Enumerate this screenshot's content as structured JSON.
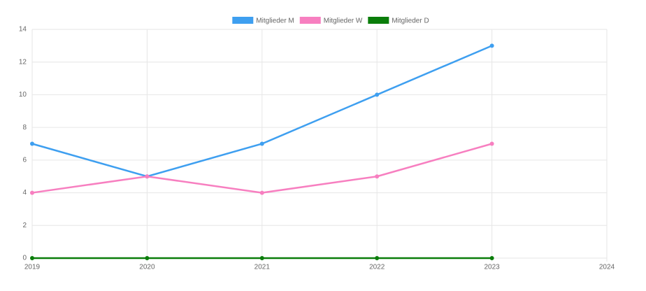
{
  "chart_data": {
    "type": "line",
    "x": [
      2019,
      2020,
      2021,
      2022,
      2023
    ],
    "series": [
      {
        "name": "Mitglieder M",
        "color": "#3e9ff0",
        "values": [
          7,
          5,
          7,
          10,
          13
        ]
      },
      {
        "name": "Mitglieder W",
        "color": "#f77fc0",
        "values": [
          4,
          5,
          4,
          5,
          7
        ]
      },
      {
        "name": "Mitglieder D",
        "color": "#0a7d0a",
        "values": [
          0,
          0,
          0,
          0,
          0
        ]
      }
    ],
    "xlim": [
      2019,
      2024
    ],
    "xticks": [
      2019,
      2020,
      2021,
      2022,
      2023,
      2024
    ],
    "ylim": [
      0,
      14
    ],
    "yticks": [
      0,
      2,
      4,
      6,
      8,
      10,
      12,
      14
    ],
    "grid": true,
    "legend": "top"
  }
}
